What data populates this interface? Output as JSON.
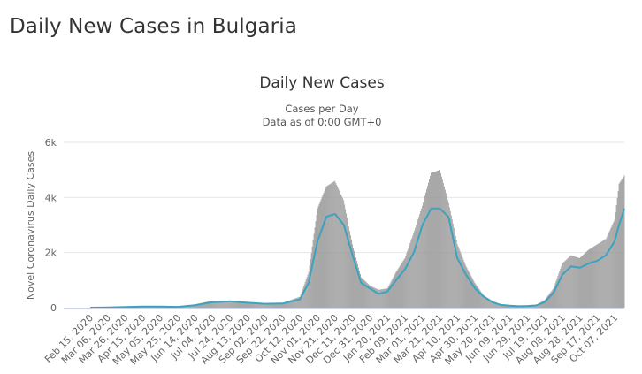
{
  "page": {
    "heading": "Daily New Cases in Bulgaria"
  },
  "chart_data": {
    "type": "bar",
    "title": "Daily New Cases",
    "subtitle_lines": [
      "Cases per Day",
      "Data as of 0:00 GMT+0"
    ],
    "ylabel": "Novel Coronavirus Daily Cases",
    "ylim": [
      0,
      6000
    ],
    "y_ticks": [
      0,
      2000,
      4000,
      6000
    ],
    "y_tick_labels": [
      "0",
      "2k",
      "4k",
      "6k"
    ],
    "x_range": [
      "2020-02-15",
      "2021-10-18"
    ],
    "x_tick_labels": [
      "Feb 15, 2020",
      "Mar 06, 2020",
      "Mar 26, 2020",
      "Apr 15, 2020",
      "May 05, 2020",
      "May 25, 2020",
      "Jun 14, 2020",
      "Jul 04, 2020",
      "Jul 24, 2020",
      "Aug 13, 2020",
      "Sep 02, 2020",
      "Sep 22, 2020",
      "Oct 12, 2020",
      "Nov 01, 2020",
      "Nov 21, 2020",
      "Dec 11, 2020",
      "Dec 31, 2020",
      "Jan 20, 2021",
      "Feb 09, 2021",
      "Mar 01, 2021",
      "Mar 21, 2021",
      "Apr 10, 2021",
      "Apr 30, 2021",
      "May 20, 2021",
      "Jun 09, 2021",
      "Jun 29, 2021",
      "Jul 19, 2021",
      "Aug 08, 2021",
      "Aug 28, 2021",
      "Sep 17, 2021",
      "Oct 07, 2021"
    ],
    "grid": true,
    "colors": {
      "bars": "#999999",
      "moving_average": "#3ba3c1",
      "grid": "#e6e6e6"
    },
    "series": [
      {
        "kind": "bars",
        "x": [
          "2020-02-15",
          "2020-03-06",
          "2020-03-26",
          "2020-04-15",
          "2020-05-05",
          "2020-05-25",
          "2020-06-14",
          "2020-07-04",
          "2020-07-24",
          "2020-08-13",
          "2020-09-02",
          "2020-09-22",
          "2020-10-12",
          "2020-10-22",
          "2020-11-01",
          "2020-11-11",
          "2020-11-21",
          "2020-12-01",
          "2020-12-11",
          "2020-12-21",
          "2020-12-31",
          "2021-01-10",
          "2021-01-20",
          "2021-01-30",
          "2021-02-09",
          "2021-02-19",
          "2021-03-01",
          "2021-03-11",
          "2021-03-21",
          "2021-03-31",
          "2021-04-10",
          "2021-04-20",
          "2021-04-30",
          "2021-05-10",
          "2021-05-20",
          "2021-05-30",
          "2021-06-09",
          "2021-06-19",
          "2021-06-29",
          "2021-07-09",
          "2021-07-19",
          "2021-07-29",
          "2021-08-08",
          "2021-08-18",
          "2021-08-28",
          "2021-09-07",
          "2021-09-17",
          "2021-09-27",
          "2021-10-07",
          "2021-10-12",
          "2021-10-18"
        ],
        "values": [
          0,
          5,
          30,
          45,
          40,
          25,
          120,
          260,
          240,
          160,
          150,
          170,
          400,
          1300,
          3600,
          4400,
          4600,
          3900,
          2300,
          1100,
          800,
          650,
          700,
          1300,
          1800,
          2700,
          3700,
          4900,
          5000,
          3800,
          2300,
          1500,
          900,
          450,
          250,
          120,
          80,
          60,
          70,
          100,
          280,
          700,
          1600,
          1900,
          1800,
          2100,
          2300,
          2500,
          3200,
          4500,
          4800
        ]
      },
      {
        "kind": "line",
        "name": "",
        "x": [
          "2020-02-15",
          "2020-03-06",
          "2020-03-26",
          "2020-04-15",
          "2020-05-05",
          "2020-05-25",
          "2020-06-14",
          "2020-07-04",
          "2020-07-24",
          "2020-08-13",
          "2020-09-02",
          "2020-09-22",
          "2020-10-12",
          "2020-10-22",
          "2020-11-01",
          "2020-11-11",
          "2020-11-21",
          "2020-12-01",
          "2020-12-11",
          "2020-12-21",
          "2020-12-31",
          "2021-01-10",
          "2021-01-20",
          "2021-01-30",
          "2021-02-09",
          "2021-02-19",
          "2021-03-01",
          "2021-03-11",
          "2021-03-21",
          "2021-03-31",
          "2021-04-10",
          "2021-04-20",
          "2021-04-30",
          "2021-05-10",
          "2021-05-20",
          "2021-05-30",
          "2021-06-09",
          "2021-06-19",
          "2021-06-29",
          "2021-07-09",
          "2021-07-19",
          "2021-07-29",
          "2021-08-08",
          "2021-08-18",
          "2021-08-28",
          "2021-09-07",
          "2021-09-17",
          "2021-09-27",
          "2021-10-07",
          "2021-10-12",
          "2021-10-18"
        ],
        "values": [
          0,
          5,
          25,
          40,
          40,
          30,
          90,
          200,
          230,
          180,
          140,
          150,
          300,
          900,
          2400,
          3300,
          3400,
          3000,
          1900,
          900,
          700,
          500,
          580,
          1000,
          1400,
          2000,
          3000,
          3600,
          3600,
          3300,
          1800,
          1200,
          700,
          400,
          200,
          100,
          70,
          50,
          60,
          80,
          200,
          550,
          1200,
          1500,
          1450,
          1600,
          1700,
          1900,
          2400,
          3000,
          3600
        ]
      }
    ]
  }
}
